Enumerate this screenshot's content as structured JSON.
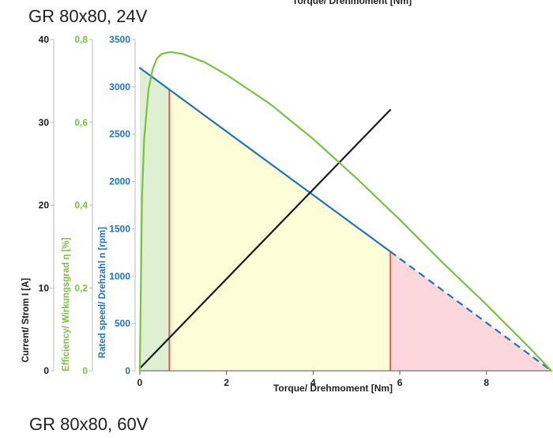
{
  "labels": {
    "top_motor": "GR 80x80, 24V",
    "bottom_motor": "GR 80x80, 60V",
    "top_axis_title": "Torque/ Drehmoment [Nm]"
  },
  "chart_data": {
    "type": "line",
    "xlabel": "Torque/ Drehmoment [Nm]",
    "xlim": [
      0,
      9.5
    ],
    "x_ticks": [
      0,
      2,
      4,
      6,
      8
    ],
    "y_axes": [
      {
        "id": "current",
        "label": "Current/ Strom I [A]",
        "color": "#1a1a1a",
        "lim": [
          0,
          40
        ],
        "ticks": [
          {
            "v": 0,
            "t": "0"
          },
          {
            "v": 10,
            "t": "10"
          },
          {
            "v": 20,
            "t": "20"
          },
          {
            "v": 30,
            "t": "30"
          },
          {
            "v": 40,
            "t": "40"
          }
        ]
      },
      {
        "id": "efficiency",
        "label": "Efficiency/ Wirkungsgrad η [%]",
        "color": "#7ac143",
        "lim": [
          0,
          0.8
        ],
        "ticks": [
          {
            "v": 0,
            "t": "0"
          },
          {
            "v": 0.2,
            "t": "0,2"
          },
          {
            "v": 0.4,
            "t": "0,4"
          },
          {
            "v": 0.6,
            "t": "0,6"
          },
          {
            "v": 0.8,
            "t": "0,8"
          }
        ]
      },
      {
        "id": "speed",
        "label": "Rated speed/ Drehzahl n [rpm]",
        "color": "#1f74bb",
        "lim": [
          0,
          3500
        ],
        "ticks": [
          {
            "v": 0,
            "t": "0"
          },
          {
            "v": 500,
            "t": "500"
          },
          {
            "v": 1000,
            "t": "1000"
          },
          {
            "v": 1500,
            "t": "1500"
          },
          {
            "v": 2000,
            "t": "2000"
          },
          {
            "v": 2500,
            "t": "2500"
          },
          {
            "v": 3000,
            "t": "3000"
          },
          {
            "v": 3500,
            "t": "3500"
          }
        ]
      }
    ],
    "regions": [
      {
        "from": 0,
        "to": 0.68,
        "color": "#deefd2"
      },
      {
        "from": 0.68,
        "to": 5.78,
        "color": "#fdfdd8"
      },
      {
        "from": 5.78,
        "to": 9.5,
        "color": "#fcd8dc"
      }
    ],
    "boundary_color": "#e8463c",
    "series": [
      {
        "id": "speed",
        "axis": "speed",
        "color": "#1f74bb",
        "x": [
          0,
          5.78
        ],
        "y": [
          3200,
          1260
        ],
        "dashed_x": [
          5.78,
          9.5
        ],
        "dashed_y": [
          1260,
          0
        ]
      },
      {
        "id": "current",
        "axis": "current",
        "color": "#1a1a1a",
        "x": [
          0,
          5.78
        ],
        "y": [
          0.3,
          31.5
        ]
      },
      {
        "id": "efficiency",
        "axis": "efficiency",
        "color": "#7ac143",
        "x": [
          0,
          0.05,
          0.1,
          0.2,
          0.3,
          0.4,
          0.5,
          0.7,
          1.0,
          1.5,
          2.0,
          3.0,
          4.0,
          5.0,
          6.0,
          7.0,
          8.0,
          9.0,
          9.5
        ],
        "y": [
          0,
          0.42,
          0.56,
          0.68,
          0.73,
          0.755,
          0.765,
          0.77,
          0.765,
          0.745,
          0.715,
          0.645,
          0.56,
          0.465,
          0.365,
          0.26,
          0.16,
          0.055,
          0.0
        ]
      }
    ]
  }
}
